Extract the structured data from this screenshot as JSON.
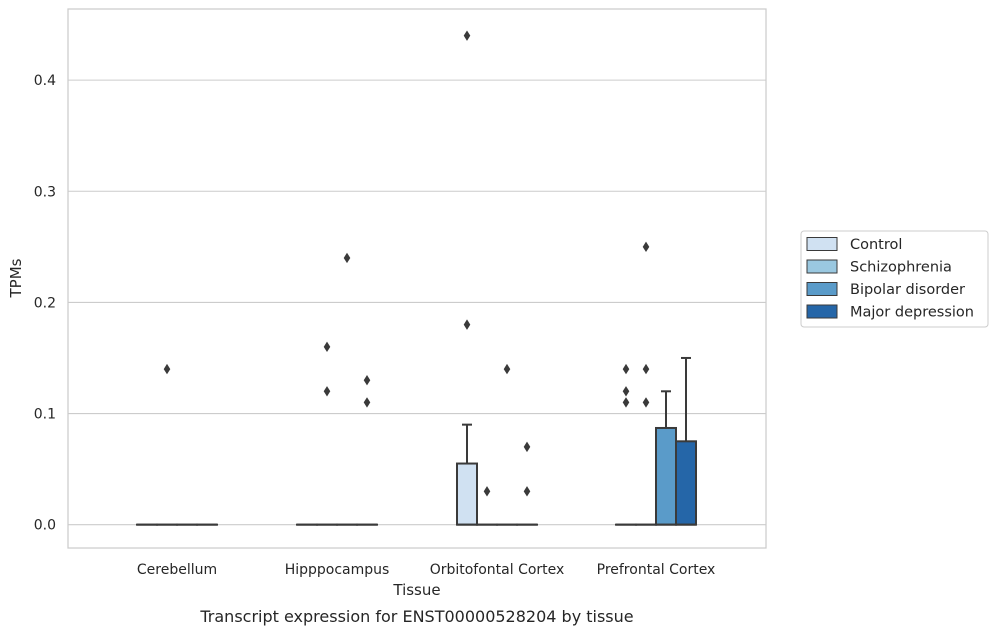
{
  "caption": "Transcript expression for ENST00000528204 by tissue",
  "chart_data": {
    "type": "box",
    "xlabel": "Tissue",
    "ylabel": "TPMs",
    "ylim": [
      -0.021,
      0.464
    ],
    "yticks": [
      0.0,
      0.1,
      0.2,
      0.3,
      0.4
    ],
    "ytick_labels": [
      "0.0",
      "0.1",
      "0.2",
      "0.3",
      "0.4"
    ],
    "grid": "horizontal",
    "legend_position": "right",
    "categories": [
      "Cerebellum",
      "Hipppocampus",
      "Orbitofontal Cortex",
      "Prefrontal Cortex"
    ],
    "series": [
      {
        "name": "Control",
        "color": "#d0e1f2",
        "boxes": [
          {
            "q1": 0,
            "median": 0,
            "q3": 0,
            "whisker_low": 0,
            "whisker_high": 0,
            "outliers": []
          },
          {
            "q1": 0,
            "median": 0,
            "q3": 0,
            "whisker_low": 0,
            "whisker_high": 0,
            "outliers": []
          },
          {
            "q1": 0,
            "median": 0,
            "q3": 0.055,
            "whisker_low": 0,
            "whisker_high": 0.09,
            "outliers": [
              0.18,
              0.44
            ]
          },
          {
            "q1": 0,
            "median": 0,
            "q3": 0,
            "whisker_low": 0,
            "whisker_high": 0,
            "outliers": [
              0.11,
              0.12,
              0.14
            ]
          }
        ]
      },
      {
        "name": "Schizophrenia",
        "color": "#9ac8e0",
        "boxes": [
          {
            "q1": 0,
            "median": 0,
            "q3": 0,
            "whisker_low": 0,
            "whisker_high": 0,
            "outliers": [
              0.14
            ]
          },
          {
            "q1": 0,
            "median": 0,
            "q3": 0,
            "whisker_low": 0,
            "whisker_high": 0,
            "outliers": [
              0.12,
              0.16
            ]
          },
          {
            "q1": 0,
            "median": 0,
            "q3": 0,
            "whisker_low": 0,
            "whisker_high": 0,
            "outliers": [
              0.03
            ]
          },
          {
            "q1": 0,
            "median": 0,
            "q3": 0,
            "whisker_low": 0,
            "whisker_high": 0,
            "outliers": [
              0.11,
              0.14,
              0.25
            ]
          }
        ]
      },
      {
        "name": "Bipolar disorder",
        "color": "#5a9bc9",
        "boxes": [
          {
            "q1": 0,
            "median": 0,
            "q3": 0,
            "whisker_low": 0,
            "whisker_high": 0,
            "outliers": []
          },
          {
            "q1": 0,
            "median": 0,
            "q3": 0,
            "whisker_low": 0,
            "whisker_high": 0,
            "outliers": [
              0.24
            ]
          },
          {
            "q1": 0,
            "median": 0,
            "q3": 0,
            "whisker_low": 0,
            "whisker_high": 0,
            "outliers": [
              0.14
            ]
          },
          {
            "q1": 0,
            "median": 0,
            "q3": 0.087,
            "whisker_low": 0,
            "whisker_high": 0.12,
            "outliers": []
          }
        ]
      },
      {
        "name": "Major depression",
        "color": "#2566a8",
        "boxes": [
          {
            "q1": 0,
            "median": 0,
            "q3": 0,
            "whisker_low": 0,
            "whisker_high": 0,
            "outliers": []
          },
          {
            "q1": 0,
            "median": 0,
            "q3": 0,
            "whisker_low": 0,
            "whisker_high": 0,
            "outliers": [
              0.11,
              0.13
            ]
          },
          {
            "q1": 0,
            "median": 0,
            "q3": 0,
            "whisker_low": 0,
            "whisker_high": 0,
            "outliers": [
              0.03,
              0.07
            ]
          },
          {
            "q1": 0,
            "median": 0,
            "q3": 0.075,
            "whisker_low": 0,
            "whisker_high": 0.15,
            "outliers": []
          }
        ]
      }
    ]
  }
}
